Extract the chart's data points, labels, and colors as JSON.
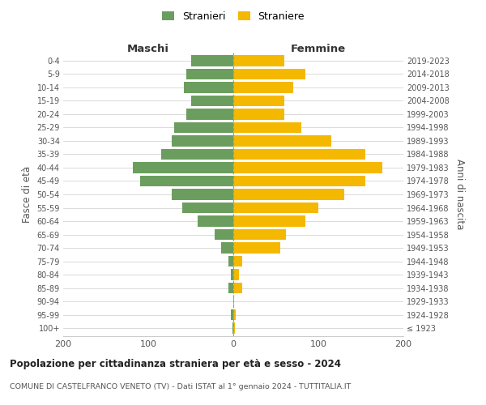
{
  "age_groups": [
    "100+",
    "95-99",
    "90-94",
    "85-89",
    "80-84",
    "75-79",
    "70-74",
    "65-69",
    "60-64",
    "55-59",
    "50-54",
    "45-49",
    "40-44",
    "35-39",
    "30-34",
    "25-29",
    "20-24",
    "15-19",
    "10-14",
    "5-9",
    "0-4"
  ],
  "birth_years": [
    "≤ 1923",
    "1924-1928",
    "1929-1933",
    "1934-1938",
    "1939-1943",
    "1944-1948",
    "1949-1953",
    "1954-1958",
    "1959-1963",
    "1964-1968",
    "1969-1973",
    "1974-1978",
    "1979-1983",
    "1984-1988",
    "1989-1993",
    "1994-1998",
    "1999-2003",
    "2004-2008",
    "2009-2013",
    "2014-2018",
    "2019-2023"
  ],
  "males": [
    1,
    3,
    0,
    6,
    3,
    6,
    14,
    22,
    42,
    60,
    72,
    110,
    118,
    85,
    72,
    70,
    55,
    50,
    58,
    55,
    50
  ],
  "females": [
    2,
    3,
    1,
    10,
    7,
    10,
    55,
    62,
    85,
    100,
    130,
    155,
    175,
    155,
    115,
    80,
    60,
    60,
    70,
    85,
    60
  ],
  "male_color": "#6b9e5e",
  "female_color": "#f5b800",
  "background_color": "#ffffff",
  "grid_color": "#cccccc",
  "title": "Popolazione per cittadinanza straniera per età e sesso - 2024",
  "subtitle": "COMUNE DI CASTELFRANCO VENETO (TV) - Dati ISTAT al 1° gennaio 2024 - TUTTITALIA.IT",
  "left_label": "Maschi",
  "right_label": "Femmine",
  "ylabel_left": "Fasce di età",
  "ylabel_right": "Anni di nascita",
  "legend_male": "Stranieri",
  "legend_female": "Straniere",
  "xlim": 200,
  "bar_height": 0.82
}
